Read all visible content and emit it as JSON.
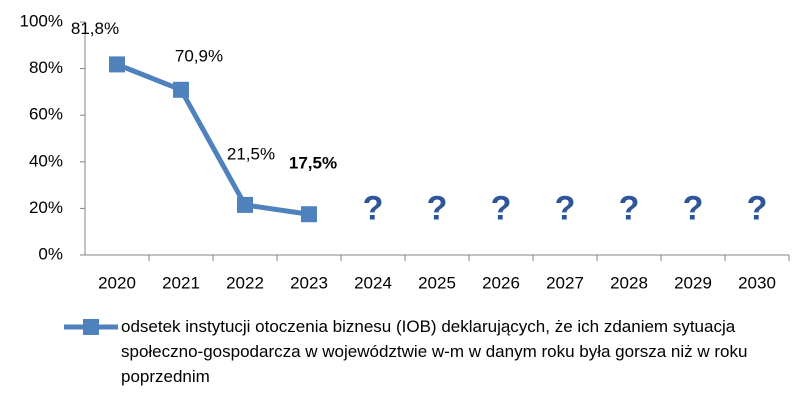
{
  "chart_data": {
    "type": "line",
    "categories": [
      "2020",
      "2021",
      "2022",
      "2023",
      "2024",
      "2025",
      "2026",
      "2027",
      "2028",
      "2029",
      "2030"
    ],
    "series": [
      {
        "name": "odsetek instytucji otoczenia biznesu (IOB) deklarujących, że ich zdaniem sytuacja społeczno-gospodarcza w województwie w-m w danym roku była gorsza niż w roku poprzednim",
        "color": "#4f81bd",
        "values": [
          81.8,
          70.9,
          21.5,
          17.5,
          null,
          null,
          null,
          null,
          null,
          null,
          null
        ],
        "value_labels": [
          "81,8%",
          "70,9%",
          "21,5%",
          "17,5%",
          null,
          null,
          null,
          null,
          null,
          null,
          null
        ],
        "value_label_weights": [
          "normal",
          "normal",
          "normal",
          "bold",
          null,
          null,
          null,
          null,
          null,
          null,
          null
        ]
      }
    ],
    "unknown_label": "?",
    "unknown_color": "#2e5597",
    "ylim": [
      0,
      100
    ],
    "yticks": [
      {
        "value": 0,
        "label": "0%"
      },
      {
        "value": 20,
        "label": "20%"
      },
      {
        "value": 40,
        "label": "40%"
      },
      {
        "value": 60,
        "label": "60%"
      },
      {
        "value": 80,
        "label": "80%"
      },
      {
        "value": 100,
        "label": "100%"
      }
    ],
    "legend": "bottom"
  }
}
